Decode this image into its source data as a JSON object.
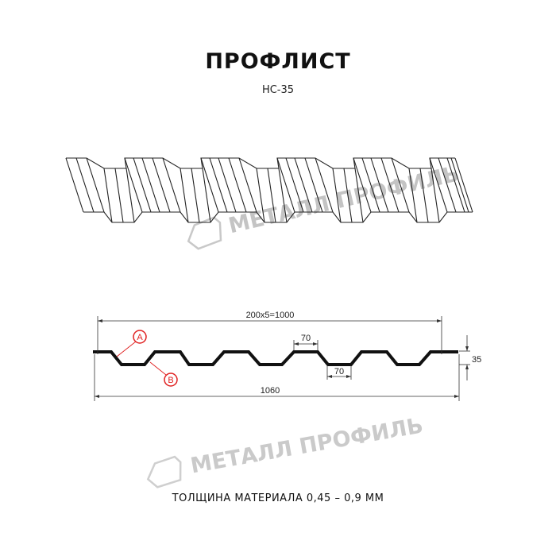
{
  "header": {
    "title": "ПРОФЛИСТ",
    "subtitle": "НС-35"
  },
  "watermark": {
    "text": "МЕТАЛЛ ПРОФИЛЬ",
    "color": "#bdbdbd"
  },
  "drawing": {
    "dimensions": {
      "pitch_total": "200x5=1000",
      "top_width": "70",
      "bottom_width": "70",
      "height": "35",
      "full_width": "1060"
    },
    "callouts": [
      {
        "label": "A",
        "color": "#e02020"
      },
      {
        "label": "B",
        "color": "#e02020"
      }
    ],
    "line_color": "#111111"
  },
  "footer": {
    "thickness_text": "ТОЛЩИНА МАТЕРИАЛА 0,45 – 0,9 ММ"
  }
}
